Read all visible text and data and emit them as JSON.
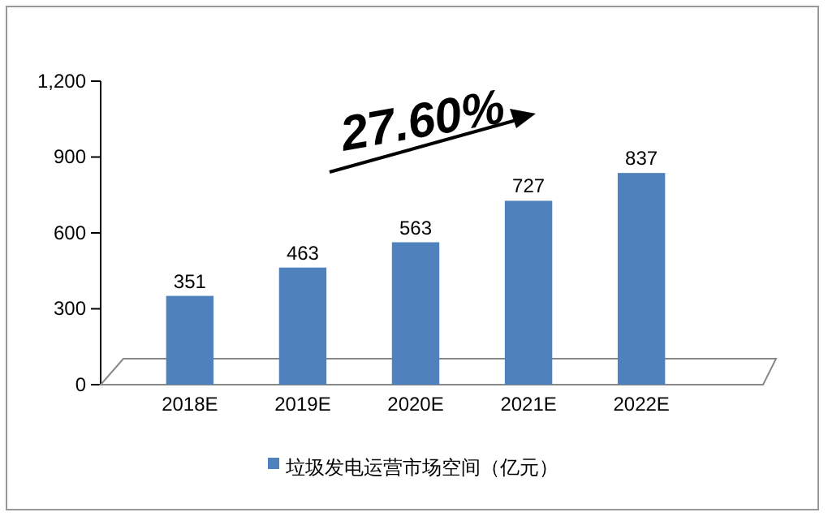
{
  "chart_data": {
    "type": "bar",
    "categories": [
      "2018E",
      "2019E",
      "2020E",
      "2021E",
      "2022E"
    ],
    "series": [
      {
        "name": "垃圾发电运营市场空间（亿元）",
        "color": "#4f81bd",
        "values": [
          351,
          463,
          563,
          727,
          837
        ]
      }
    ],
    "ylim": [
      0,
      1200
    ],
    "yticks": [
      0,
      300,
      600,
      900,
      {
        "value": 1200,
        "label": "1,200"
      }
    ],
    "data_labels": true,
    "legend": "bottom",
    "annotations": [
      "27.60%"
    ]
  }
}
